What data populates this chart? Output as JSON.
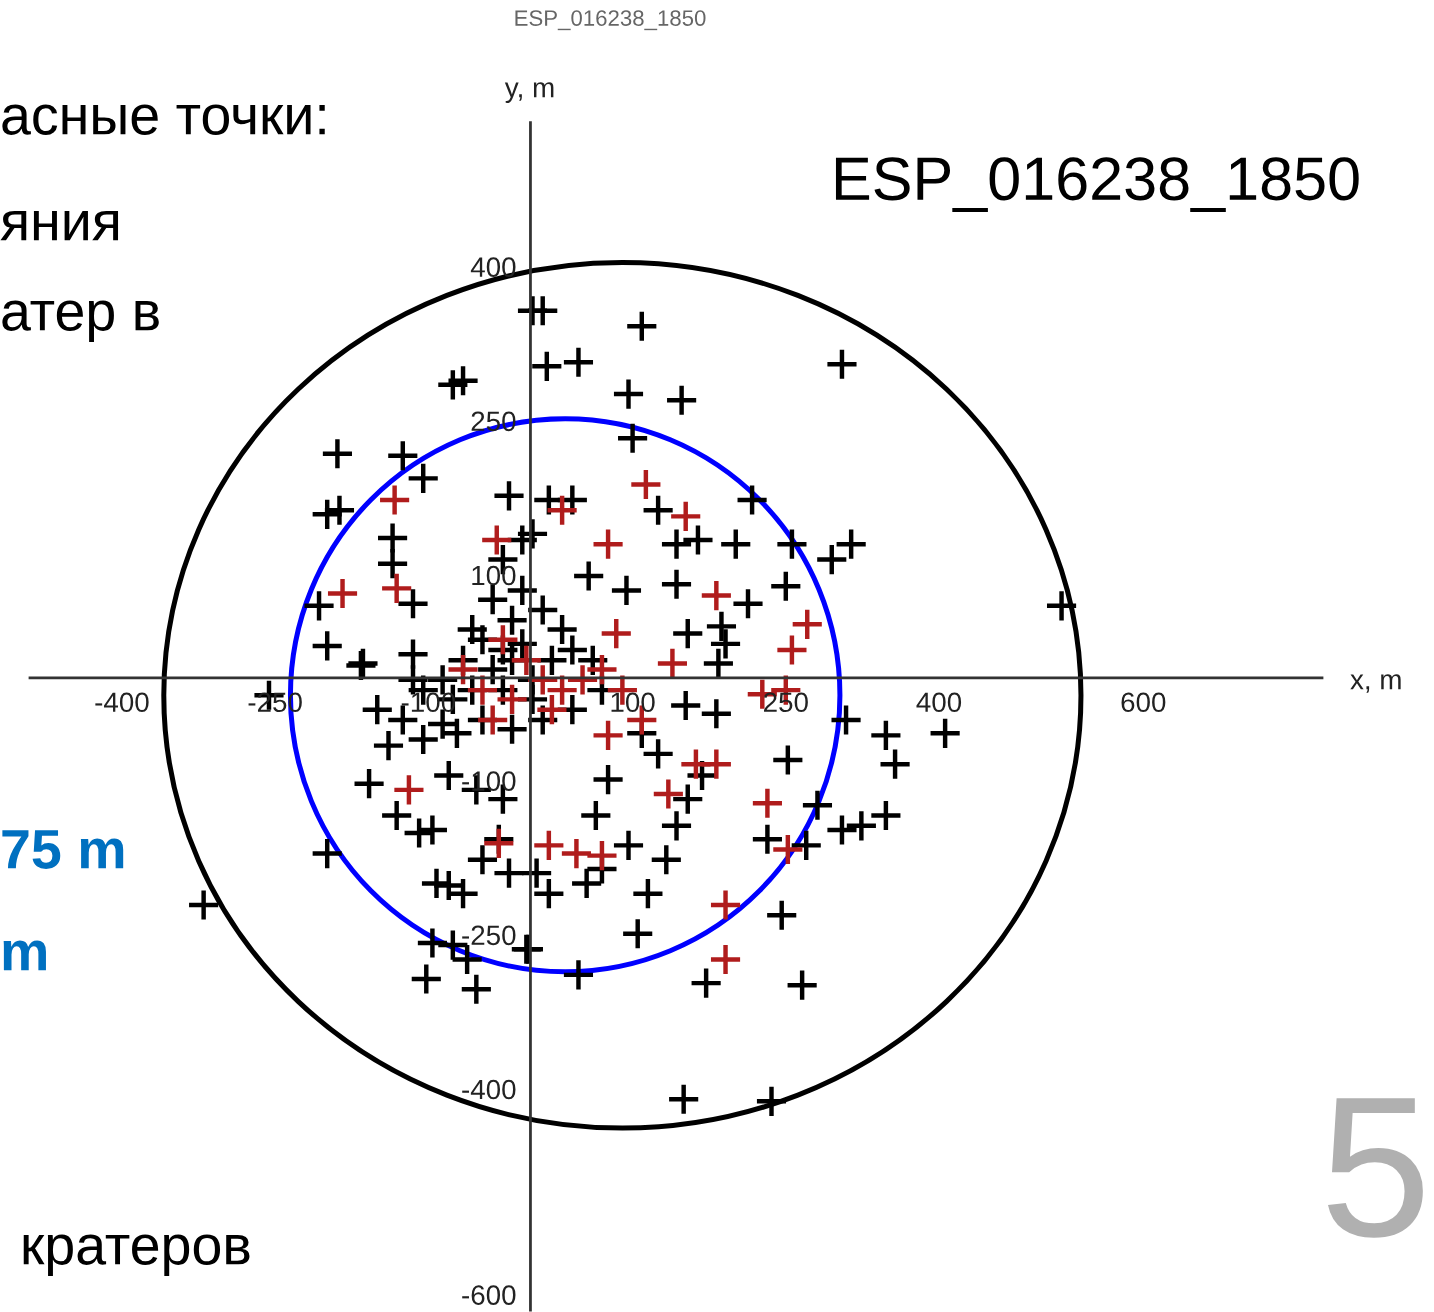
{
  "chart_data": {
    "type": "scatter",
    "title": "ESP_016238_1850",
    "xlabel": "x, m",
    "ylabel": "y, m",
    "xlim": [
      -490,
      775
    ],
    "ylim": [
      -615,
      540
    ],
    "xticks": [
      -400,
      -250,
      -100,
      100,
      250,
      400,
      600
    ],
    "yticks": [
      400,
      250,
      100,
      -100,
      -250,
      -400,
      -600
    ],
    "grid": false,
    "annotations": [
      "асные точки:",
      "яния",
      "атер в",
      "75 m",
      "m",
      "кратеров",
      "5",
      "ESP_016238_1850"
    ],
    "series": [
      {
        "color": "#000000",
        "marker": "cross",
        "x": [
          -76,
          -66,
          -189,
          -125,
          -105,
          -199,
          -187,
          -135,
          -135,
          -115,
          -207,
          -199,
          -166,
          -115,
          -21,
          2,
          12,
          109,
          16,
          47,
          305,
          96,
          148,
          100,
          217,
          125,
          143,
          164,
          201,
          256,
          295,
          314,
          250,
          213,
          143,
          520,
          18,
          41,
          154,
          187,
          191,
          2,
          57,
          94,
          -256,
          -150,
          -125,
          -139,
          -158,
          -131,
          -109,
          -96,
          -199,
          -320,
          -92,
          -80,
          -66,
          -47,
          -31,
          -21,
          -96,
          -76,
          -62,
          -102,
          -53,
          -4,
          -80,
          -53,
          -27,
          -72,
          -105,
          -164,
          182,
          152,
          309,
          348,
          357,
          406,
          252,
          281,
          305,
          324,
          348,
          232,
          270,
          246,
          266,
          172,
          105,
          47,
          115,
          133,
          143,
          96,
          70,
          55,
          18,
          -2,
          6,
          168,
          154,
          76,
          64,
          125,
          109,
          184,
          150,
          236,
          -47,
          -27,
          -18,
          -8,
          -37,
          -66,
          -86,
          -105,
          -76,
          -57,
          -27,
          2,
          21,
          41,
          -18,
          -37,
          -8,
          12,
          31,
          61,
          70,
          -47,
          -18,
          -86,
          -115,
          -57,
          2,
          12,
          41,
          -27,
          -8
        ],
        "values": [
          285,
          289,
          218,
          216,
          194,
          159,
          163,
          136,
          111,
          72,
          70,
          31,
          12,
          23,
          177,
          357,
          357,
          342,
          303,
          307,
          305,
          276,
          270,
          233,
          173,
          163,
          130,
          134,
          130,
          130,
          115,
          130,
          89,
          72,
          91,
          70,
          173,
          173,
          43,
          50,
          33,
          140,
          99,
          85,
          -17,
          -31,
          -41,
          -66,
          -103,
          -134,
          -151,
          -148,
          -171,
          -221,
          -200,
          -202,
          -210,
          -177,
          -157,
          -190,
          -258,
          -260,
          -274,
          -293,
          -303,
          -264,
          -95,
          -109,
          -118,
          -54,
          -60,
          14,
          -35,
          -27,
          -41,
          -56,
          -84,
          -54,
          -80,
          -124,
          -148,
          -144,
          -134,
          -157,
          -163,
          -231,
          -299,
          -297,
          -249,
          -289,
          -210,
          -177,
          -144,
          -163,
          -186,
          -200,
          -210,
          -264,
          -190,
          -95,
          -118,
          -99,
          -134,
          -74,
          -54,
          14,
          -410,
          -412,
          37,
          27,
          17,
          33,
          8,
          17,
          -2,
          -12,
          -21,
          -12,
          -12,
          -2,
          17,
          27,
          56,
          76,
          85,
          66,
          47,
          17,
          -12,
          -41,
          -50,
          -45,
          -2,
          47,
          -21,
          -41,
          -31,
          115,
          134
        ]
      },
      {
        "color": "#b01c1c",
        "marker": "cross",
        "x": [
          -133,
          -184,
          -131,
          -33,
          113,
          152,
          76,
          182,
          271,
          256,
          84,
          31,
          139,
          -119,
          -31,
          232,
          252,
          191,
          191,
          135,
          182,
          162,
          76,
          18,
          45,
          70,
          227,
          250,
          -47,
          -18,
          12,
          31,
          -66,
          -27,
          -4,
          51,
          -37,
          21,
          90,
          109,
          70
        ],
        "values": [
          173,
          82,
          87,
          134,
          188,
          157,
          130,
          80,
          52,
          27,
          43,
          163,
          14,
          -109,
          -161,
          -122,
          -167,
          -221,
          -274,
          -113,
          -84,
          -84,
          -56,
          -163,
          -171,
          -173,
          -16,
          -12,
          -12,
          -21,
          -2,
          -12,
          8,
          37,
          17,
          -2,
          -41,
          -31,
          -12,
          -41,
          8
        ]
      }
    ]
  }
}
